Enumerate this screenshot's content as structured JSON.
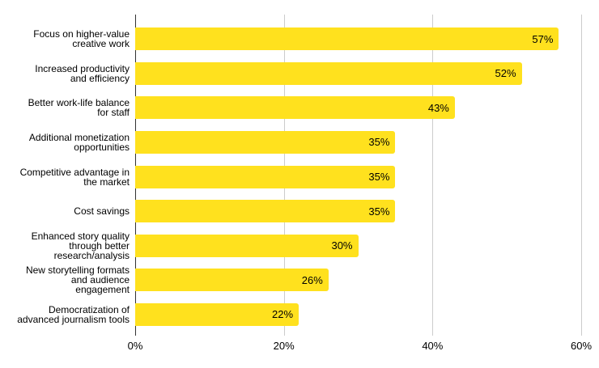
{
  "chart_data": {
    "type": "bar",
    "orientation": "horizontal",
    "categories": [
      "Focus on higher-value\ncreative work",
      "Increased productivity\nand efficiency",
      "Better work-life balance\nfor staff",
      "Additional monetization\nopportunities",
      "Competitive advantage in\nthe market",
      "Cost savings",
      "Enhanced story quality\nthrough better\nresearch/analysis",
      "New storytelling formats\nand audience\nengagement",
      "Democratization of\nadvanced journalism tools"
    ],
    "values": [
      57,
      52,
      43,
      35,
      35,
      35,
      30,
      26,
      22
    ],
    "value_labels": [
      "57%",
      "52%",
      "43%",
      "35%",
      "35%",
      "35%",
      "30%",
      "26%",
      "22%"
    ],
    "x_ticks": [
      {
        "label": "0%",
        "value": 0
      },
      {
        "label": "20%",
        "value": 20
      },
      {
        "label": "40%",
        "value": 40
      },
      {
        "label": "60%",
        "value": 60
      }
    ],
    "xlim": [
      0,
      60
    ],
    "grid": true,
    "legend": "none",
    "data_label_position": "inside-end",
    "colors": {
      "bar": "#FFE11E",
      "gridline": "#CCCCCC",
      "axis_line": "#333333",
      "text": "#000000",
      "background": "#FFFFFF"
    }
  }
}
